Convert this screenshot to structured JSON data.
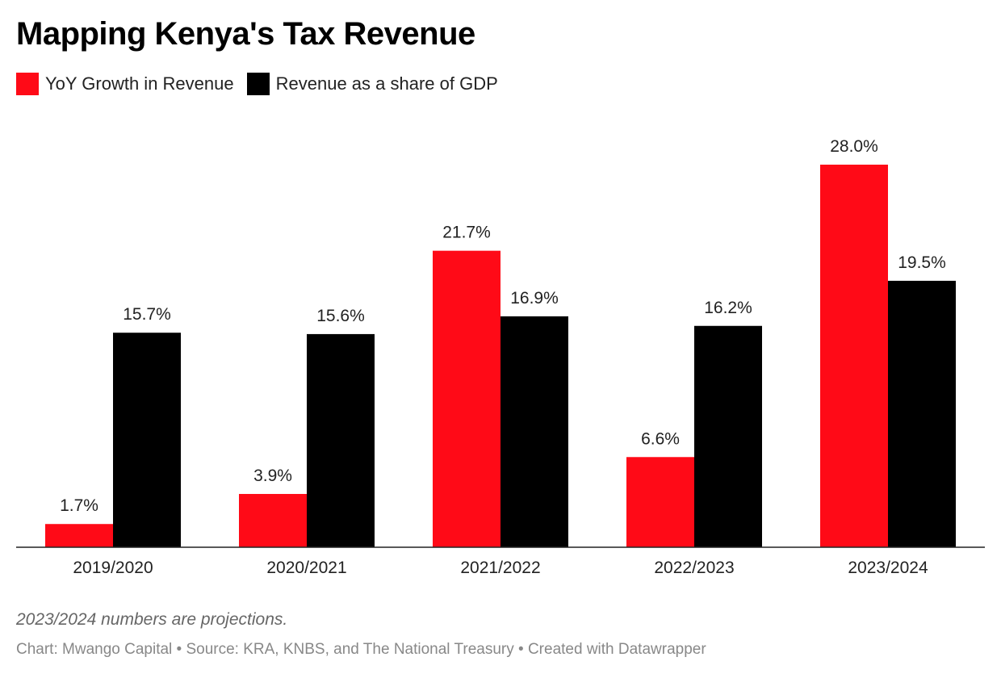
{
  "title": "Mapping Kenya's Tax Revenue",
  "note": "2023/2024 numbers are projections.",
  "credits": {
    "chart_label": "Chart: Mwango Capital",
    "separator": " • ",
    "source": "Source: KRA, KNBS, and The National Treasury",
    "tool": "Created with Datawrapper"
  },
  "colors": {
    "growth": "#ff0a17",
    "gdp_share": "#000000"
  },
  "chart_data": {
    "type": "bar",
    "title": "Mapping Kenya's Tax Revenue",
    "xlabel": "",
    "ylabel": "",
    "ylim": [
      0,
      28.0
    ],
    "grid": false,
    "legend": "top-left",
    "categories": [
      "2019/2020",
      "2020/2021",
      "2021/2022",
      "2022/2023",
      "2023/2024"
    ],
    "series": [
      {
        "name": "YoY Growth in Revenue",
        "color": "#ff0a17",
        "values": [
          1.7,
          3.9,
          21.7,
          6.6,
          28.0
        ],
        "labels": [
          "1.7%",
          "3.9%",
          "21.7%",
          "6.6%",
          "28.0%"
        ]
      },
      {
        "name": "Revenue as a share of GDP",
        "color": "#000000",
        "values": [
          15.7,
          15.6,
          16.9,
          16.2,
          19.5
        ],
        "labels": [
          "15.7%",
          "15.6%",
          "16.9%",
          "16.2%",
          "19.5%"
        ]
      }
    ]
  }
}
